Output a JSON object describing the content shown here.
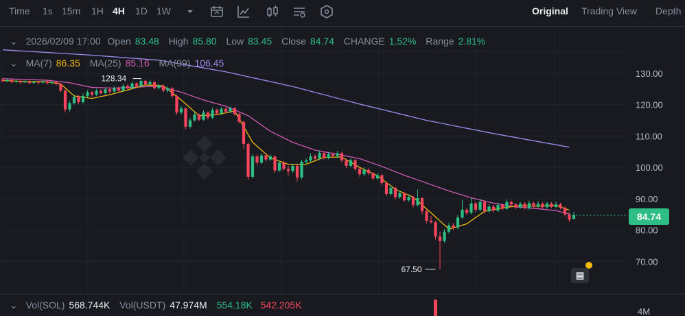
{
  "toolbar": {
    "time_label": "Time",
    "timeframes": [
      "1s",
      "15m",
      "1H",
      "4H",
      "1D",
      "1W"
    ],
    "active_timeframe": "4H",
    "views": [
      "Original",
      "Trading View",
      "Depth"
    ],
    "active_view": "Original",
    "icons": [
      "chevron-down-icon",
      "calendar-icon",
      "indicator-icon",
      "candle-type-icon",
      "settings-icon",
      "shield-icon"
    ]
  },
  "ohlc": {
    "date": "2026/02/09 17:00",
    "open_label": "Open",
    "open": "83.48",
    "high_label": "High",
    "high": "85.80",
    "low_label": "Low",
    "low": "83.45",
    "close_label": "Close",
    "close": "84.74",
    "change_label": "CHANGE",
    "change": "1.52%",
    "range_label": "Range",
    "range": "2.81%"
  },
  "ma": {
    "ma7_label": "MA(7)",
    "ma7": "86.35",
    "ma25_label": "MA(25)",
    "ma25": "85.16",
    "ma99_label": "MA(99)",
    "ma99": "106.45"
  },
  "volume": {
    "vol_sol_label": "Vol(SOL)",
    "vol_sol": "568.744K",
    "vol_usdt_label": "Vol(USDT)",
    "vol_usdt": "47.974M",
    "vol_a": "554.18K",
    "vol_b": "542.205K",
    "axis_tick": "4M"
  },
  "price_tag": "84.74",
  "colors": {
    "up": "#2ebd85",
    "down": "#f6465d",
    "ma7": "#f0b90b",
    "ma25": "#d05ab5",
    "ma99": "#9c8cf0"
  },
  "chart_data": {
    "type": "candlestick",
    "ylim": [
      62,
      140
    ],
    "y_ticks": [
      "130.00",
      "120.00",
      "110.00",
      "100.00",
      "90.00",
      "80.00",
      "70.00"
    ],
    "annotations": [
      {
        "text": "128.34",
        "value": 128.34
      },
      {
        "text": "67.50",
        "value": 67.5
      }
    ],
    "candles": [
      [
        128.0,
        127.5,
        128.6,
        127.2
      ],
      [
        127.5,
        127.9,
        128.3,
        127.1
      ],
      [
        127.9,
        127.3,
        128.2,
        126.8
      ],
      [
        127.3,
        127.6,
        128.1,
        127.0
      ],
      [
        127.6,
        127.1,
        127.9,
        126.7
      ],
      [
        127.1,
        127.4,
        127.8,
        126.9
      ],
      [
        127.4,
        126.9,
        127.7,
        126.5
      ],
      [
        126.9,
        127.3,
        127.6,
        126.6
      ],
      [
        127.3,
        127.0,
        127.6,
        126.5
      ],
      [
        127.0,
        127.4,
        127.8,
        126.8
      ],
      [
        127.4,
        126.9,
        127.7,
        126.4
      ],
      [
        126.9,
        127.2,
        127.6,
        126.5
      ],
      [
        127.2,
        126.6,
        127.5,
        126.2
      ],
      [
        126.6,
        124.5,
        126.9,
        124.0
      ],
      [
        124.5,
        118.5,
        124.9,
        117.5
      ],
      [
        118.5,
        120.5,
        121.2,
        117.8
      ],
      [
        120.5,
        122.5,
        123.2,
        120.0
      ],
      [
        122.5,
        120.8,
        123.0,
        120.2
      ],
      [
        120.8,
        122.8,
        123.6,
        120.3
      ],
      [
        122.8,
        124.0,
        124.6,
        122.2
      ],
      [
        124.0,
        123.2,
        124.5,
        122.5
      ],
      [
        123.2,
        124.4,
        125.0,
        122.8
      ],
      [
        124.4,
        123.7,
        124.9,
        123.1
      ],
      [
        123.7,
        124.9,
        125.3,
        123.3
      ],
      [
        124.9,
        124.2,
        125.4,
        123.5
      ],
      [
        124.2,
        125.3,
        125.9,
        123.8
      ],
      [
        125.3,
        124.5,
        125.8,
        124.0
      ],
      [
        124.5,
        126.0,
        126.7,
        124.1
      ],
      [
        126.0,
        125.2,
        126.6,
        124.8
      ],
      [
        125.2,
        126.8,
        127.5,
        124.9
      ],
      [
        126.8,
        125.9,
        127.3,
        125.3
      ],
      [
        125.9,
        127.6,
        128.34,
        125.7
      ],
      [
        127.6,
        126.5,
        127.9,
        126.0
      ],
      [
        126.5,
        127.2,
        127.8,
        126.0
      ],
      [
        127.2,
        125.3,
        127.5,
        124.8
      ],
      [
        125.3,
        126.1,
        126.7,
        124.9
      ],
      [
        126.1,
        124.5,
        126.5,
        124.0
      ],
      [
        124.5,
        125.2,
        125.9,
        123.9
      ],
      [
        125.2,
        122.8,
        125.6,
        122.2
      ],
      [
        122.8,
        117.5,
        123.2,
        116.8
      ],
      [
        117.5,
        118.8,
        119.5,
        116.9
      ],
      [
        118.8,
        113.0,
        119.1,
        112.2
      ],
      [
        113.0,
        115.0,
        115.8,
        112.4
      ],
      [
        115.0,
        116.8,
        117.6,
        114.6
      ],
      [
        116.8,
        115.2,
        117.2,
        114.7
      ],
      [
        115.2,
        117.5,
        118.3,
        114.9
      ],
      [
        117.5,
        115.9,
        117.9,
        115.3
      ],
      [
        115.9,
        118.3,
        119.0,
        115.4
      ],
      [
        118.3,
        117.2,
        118.8,
        116.7
      ],
      [
        117.2,
        118.7,
        119.2,
        116.8
      ],
      [
        118.7,
        117.8,
        119.1,
        117.3
      ],
      [
        117.8,
        118.9,
        119.4,
        117.3
      ],
      [
        118.9,
        117.0,
        119.3,
        116.5
      ],
      [
        117.0,
        114.5,
        117.4,
        114.0
      ],
      [
        114.5,
        107.5,
        114.9,
        105.8
      ],
      [
        107.5,
        97.0,
        108.0,
        96.0
      ],
      [
        97.0,
        103.5,
        104.3,
        96.5
      ],
      [
        103.5,
        101.5,
        104.1,
        100.6
      ],
      [
        101.5,
        103.8,
        104.6,
        101.1
      ],
      [
        103.8,
        102.5,
        104.3,
        101.7
      ],
      [
        102.5,
        103.5,
        104.2,
        102.0
      ],
      [
        103.5,
        99.0,
        103.8,
        98.2
      ],
      [
        99.0,
        101.5,
        102.2,
        98.6
      ],
      [
        101.5,
        99.5,
        102.0,
        99.0
      ],
      [
        99.5,
        98.8,
        100.5,
        97.4
      ],
      [
        98.8,
        100.5,
        101.2,
        98.3
      ],
      [
        100.5,
        96.8,
        100.8,
        95.5
      ],
      [
        96.8,
        101.8,
        102.4,
        96.3
      ],
      [
        101.8,
        102.2,
        102.9,
        101.2
      ],
      [
        102.2,
        103.5,
        104.5,
        101.6
      ],
      [
        103.5,
        102.8,
        104.2,
        102.2
      ],
      [
        102.8,
        104.6,
        105.4,
        102.4
      ],
      [
        104.6,
        103.0,
        105.0,
        102.4
      ],
      [
        103.0,
        104.2,
        104.9,
        102.6
      ],
      [
        104.2,
        103.6,
        104.8,
        103.0
      ],
      [
        103.6,
        104.5,
        105.2,
        103.1
      ],
      [
        104.5,
        102.2,
        104.9,
        101.6
      ],
      [
        102.2,
        100.5,
        102.6,
        99.8
      ],
      [
        100.5,
        102.3,
        102.9,
        100.1
      ],
      [
        102.3,
        99.5,
        102.7,
        98.8
      ],
      [
        99.5,
        97.8,
        99.9,
        97.0
      ],
      [
        97.8,
        99.2,
        100.0,
        97.3
      ],
      [
        99.2,
        98.2,
        99.7,
        97.5
      ],
      [
        98.2,
        96.5,
        98.6,
        95.8
      ],
      [
        96.5,
        97.5,
        98.3,
        96.0
      ],
      [
        97.5,
        95.0,
        97.9,
        94.3
      ],
      [
        95.0,
        91.5,
        95.3,
        90.8
      ],
      [
        91.5,
        93.5,
        94.3,
        91.0
      ],
      [
        93.5,
        90.5,
        93.8,
        89.8
      ],
      [
        90.5,
        91.8,
        92.5,
        90.0
      ],
      [
        91.8,
        89.5,
        92.1,
        88.9
      ],
      [
        89.5,
        90.6,
        91.4,
        89.0
      ],
      [
        90.6,
        88.0,
        90.9,
        87.2
      ],
      [
        88.0,
        90.2,
        93.0,
        87.5
      ],
      [
        90.2,
        86.0,
        90.5,
        85.0
      ],
      [
        86.0,
        83.0,
        86.4,
        82.2
      ],
      [
        83.0,
        82.5,
        84.5,
        82.0
      ],
      [
        82.5,
        78.0,
        82.9,
        77.0
      ],
      [
        78.0,
        76.5,
        79.5,
        67.5
      ],
      [
        76.5,
        79.5,
        80.3,
        76.0
      ],
      [
        79.5,
        81.5,
        82.3,
        78.9
      ],
      [
        81.5,
        80.8,
        82.2,
        80.0
      ],
      [
        80.8,
        84.0,
        84.8,
        80.3
      ],
      [
        84.0,
        86.5,
        89.5,
        83.6
      ],
      [
        86.5,
        85.5,
        87.0,
        84.8
      ],
      [
        85.5,
        88.5,
        90.3,
        85.0
      ],
      [
        88.5,
        86.5,
        89.0,
        85.8
      ],
      [
        86.5,
        89.0,
        90.0,
        86.0
      ],
      [
        89.0,
        86.0,
        89.4,
        85.3
      ],
      [
        86.0,
        87.5,
        88.3,
        85.6
      ],
      [
        87.5,
        86.2,
        88.0,
        85.6
      ],
      [
        86.2,
        88.0,
        88.8,
        85.7
      ],
      [
        88.0,
        86.8,
        88.4,
        86.3
      ],
      [
        86.8,
        89.0,
        89.8,
        86.4
      ],
      [
        89.0,
        88.2,
        89.4,
        87.5
      ],
      [
        88.2,
        87.2,
        88.6,
        86.7
      ],
      [
        87.2,
        88.4,
        89.1,
        86.8
      ],
      [
        88.4,
        87.0,
        88.9,
        86.6
      ],
      [
        87.0,
        88.6,
        89.4,
        86.5
      ],
      [
        88.6,
        87.6,
        89.1,
        87.0
      ],
      [
        87.6,
        88.4,
        89.2,
        87.1
      ],
      [
        88.4,
        87.3,
        88.9,
        86.9
      ],
      [
        87.3,
        88.5,
        89.0,
        86.8
      ],
      [
        88.5,
        87.4,
        88.9,
        87.0
      ],
      [
        87.4,
        88.2,
        89.0,
        86.9
      ],
      [
        88.2,
        87.1,
        88.7,
        86.6
      ],
      [
        87.1,
        85.0,
        87.5,
        84.4
      ],
      [
        85.0,
        83.3,
        85.6,
        82.6
      ],
      [
        83.48,
        84.74,
        85.8,
        83.45
      ]
    ],
    "ma7": [
      [
        0,
        127.7
      ],
      [
        5,
        127.4
      ],
      [
        10,
        127.3
      ],
      [
        13,
        126.6
      ],
      [
        16,
        122.8
      ],
      [
        20,
        122.0
      ],
      [
        24,
        123.2
      ],
      [
        28,
        124.7
      ],
      [
        32,
        126.3
      ],
      [
        36,
        126.0
      ],
      [
        40,
        121.5
      ],
      [
        44,
        116.5
      ],
      [
        48,
        116.8
      ],
      [
        52,
        118.0
      ],
      [
        56,
        108.0
      ],
      [
        60,
        103.0
      ],
      [
        64,
        101.0
      ],
      [
        68,
        101.0
      ],
      [
        72,
        103.2
      ],
      [
        76,
        103.3
      ],
      [
        80,
        100.0
      ],
      [
        84,
        97.3
      ],
      [
        88,
        93.0
      ],
      [
        92,
        90.5
      ],
      [
        96,
        85.5
      ],
      [
        100,
        80.3
      ],
      [
        104,
        82.0
      ],
      [
        108,
        86.0
      ],
      [
        112,
        87.1
      ],
      [
        116,
        87.8
      ],
      [
        120,
        87.6
      ],
      [
        124,
        87.9
      ],
      [
        127,
        86.35
      ]
    ],
    "ma25": [
      [
        0,
        128.3
      ],
      [
        10,
        127.8
      ],
      [
        15,
        127.0
      ],
      [
        20,
        125.5
      ],
      [
        25,
        125.3
      ],
      [
        30,
        125.6
      ],
      [
        35,
        125.9
      ],
      [
        40,
        124.0
      ],
      [
        45,
        121.5
      ],
      [
        50,
        119.5
      ],
      [
        55,
        116.5
      ],
      [
        60,
        111.5
      ],
      [
        65,
        108.0
      ],
      [
        70,
        105.5
      ],
      [
        75,
        104.2
      ],
      [
        80,
        102.8
      ],
      [
        85,
        100.3
      ],
      [
        90,
        97.5
      ],
      [
        95,
        95.0
      ],
      [
        100,
        92.5
      ],
      [
        105,
        90.3
      ],
      [
        110,
        88.6
      ],
      [
        115,
        87.4
      ],
      [
        120,
        86.8
      ],
      [
        124,
        86.2
      ],
      [
        127,
        85.16
      ]
    ],
    "ma99": [
      [
        0,
        137.5
      ],
      [
        20,
        135.8
      ],
      [
        35,
        134.2
      ],
      [
        50,
        130.5
      ],
      [
        65,
        125.8
      ],
      [
        80,
        120.2
      ],
      [
        95,
        115.0
      ],
      [
        110,
        110.8
      ],
      [
        127,
        106.45
      ]
    ],
    "volumes": [
      [
        97,
        1.0
      ]
    ]
  }
}
